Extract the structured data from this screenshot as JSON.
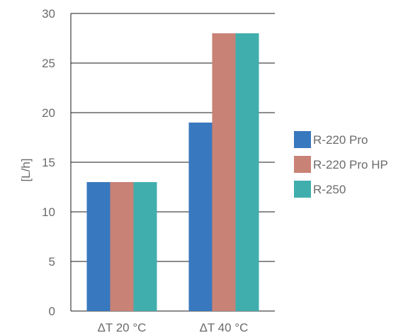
{
  "chart_data": {
    "type": "bar",
    "categories": [
      "ΔT 20 °C",
      "ΔT 40 °C"
    ],
    "series": [
      {
        "name": "R-220 Pro",
        "values": [
          13,
          19
        ],
        "color": "#3878be"
      },
      {
        "name": "R-220 Pro HP",
        "values": [
          13,
          28
        ],
        "color": "#c98276"
      },
      {
        "name": "R-250",
        "values": [
          13,
          28
        ],
        "color": "#41aeae"
      }
    ],
    "ylabel": "[L/h]",
    "ylim": [
      0,
      30
    ],
    "yticks": [
      0,
      5,
      10,
      15,
      20,
      25,
      30
    ],
    "grid": true,
    "legend": "right"
  }
}
